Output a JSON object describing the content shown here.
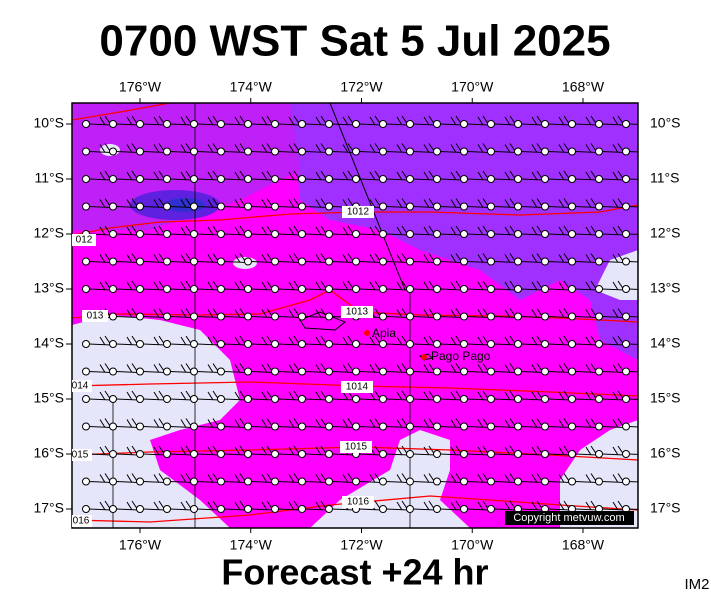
{
  "header": {
    "title": "0700 WST Sat 5 Jul 2025"
  },
  "map": {
    "lon_labels": [
      "176°W",
      "174°W",
      "172°W",
      "170°W",
      "168°W"
    ],
    "lat_labels": [
      "10°S",
      "11°S",
      "12°S",
      "13°S",
      "14°S",
      "15°S",
      "16°S",
      "17°S"
    ],
    "places": [
      "Apia",
      "Pago Pago"
    ],
    "isobar_labels": [
      "1012",
      "012",
      "1013",
      "013",
      "1014",
      "014",
      "1015",
      "015",
      "1016",
      "016"
    ],
    "copyright": "Copyright metvuw.com"
  },
  "footer": {
    "subtitle": "Forecast +24 hr",
    "image_id": "IM2"
  }
}
